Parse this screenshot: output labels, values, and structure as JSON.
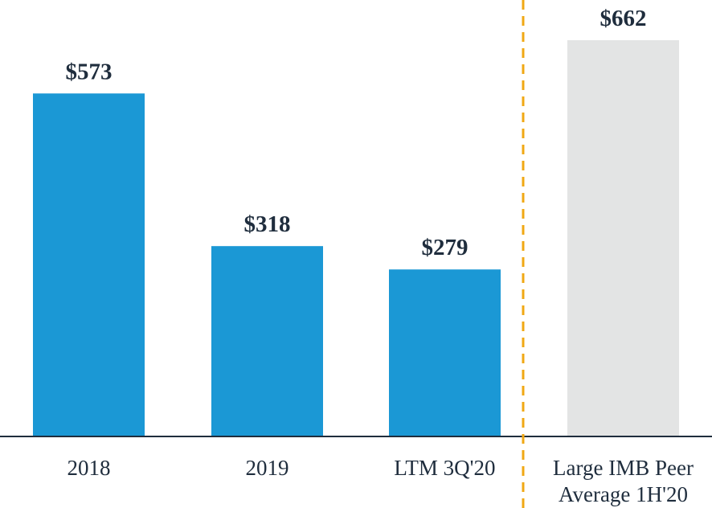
{
  "chart_data": {
    "type": "bar",
    "categories": [
      "2018",
      "2019",
      "LTM 3Q'20",
      "Large IMB Peer Average 1H'20"
    ],
    "category_lines": [
      [
        "2018"
      ],
      [
        "2019"
      ],
      [
        "LTM 3Q'20"
      ],
      [
        "Large IMB Peer",
        "Average 1H'20"
      ]
    ],
    "values": [
      573,
      318,
      279,
      662
    ],
    "value_labels": [
      "$573",
      "$318",
      "$279",
      "$662"
    ],
    "bar_colors": [
      "#1b98d5",
      "#1b98d5",
      "#1b98d5",
      "#e3e4e4"
    ],
    "separator_after_index": 2,
    "separator_color": "#f0a814",
    "axis_color": "#1f2d3d",
    "ylim": [
      0,
      662
    ],
    "title": "",
    "xlabel": "",
    "ylabel": ""
  }
}
